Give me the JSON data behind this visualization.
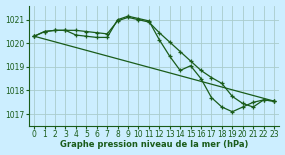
{
  "bg_color": "#cceeff",
  "grid_color": "#aacccc",
  "line_color": "#1a5c1a",
  "xlabel": "Graphe pression niveau de la mer (hPa)",
  "ylim": [
    1016.5,
    1021.6
  ],
  "xlim": [
    -0.5,
    23.5
  ],
  "yticks": [
    1017,
    1018,
    1019,
    1020,
    1021
  ],
  "xticks": [
    0,
    1,
    2,
    3,
    4,
    5,
    6,
    7,
    8,
    9,
    10,
    11,
    12,
    13,
    14,
    15,
    16,
    17,
    18,
    19,
    20,
    21,
    22,
    23
  ],
  "series": [
    {
      "x": [
        0,
        1,
        2,
        3,
        4,
        5,
        6,
        7,
        8,
        9,
        10,
        11,
        12,
        13,
        14,
        15,
        16,
        17,
        18,
        19,
        20,
        21,
        22,
        23
      ],
      "y": [
        1020.3,
        1020.5,
        1020.55,
        1020.55,
        1020.55,
        1020.5,
        1020.45,
        1020.4,
        1020.95,
        1021.1,
        1021.0,
        1020.9,
        1020.45,
        1020.05,
        1019.65,
        1019.25,
        1018.85,
        1018.55,
        1018.3,
        1017.75,
        1017.45,
        1017.3,
        1017.6,
        1017.55
      ]
    },
    {
      "x": [
        0,
        1,
        2,
        3,
        4,
        5,
        6,
        7,
        8,
        9,
        10,
        11,
        12,
        13,
        14,
        15,
        16,
        17,
        18,
        19,
        20,
        21,
        22,
        23
      ],
      "y": [
        1020.3,
        1020.5,
        1020.55,
        1020.55,
        1020.35,
        1020.3,
        1020.25,
        1020.25,
        1021.0,
        1021.15,
        1021.05,
        1020.95,
        1020.15,
        1019.45,
        1018.85,
        1019.05,
        1018.5,
        1017.7,
        1017.3,
        1017.1,
        1017.3,
        1017.5,
        1017.6,
        1017.55
      ]
    },
    {
      "x": [
        0,
        23
      ],
      "y": [
        1020.3,
        1017.55
      ]
    }
  ]
}
